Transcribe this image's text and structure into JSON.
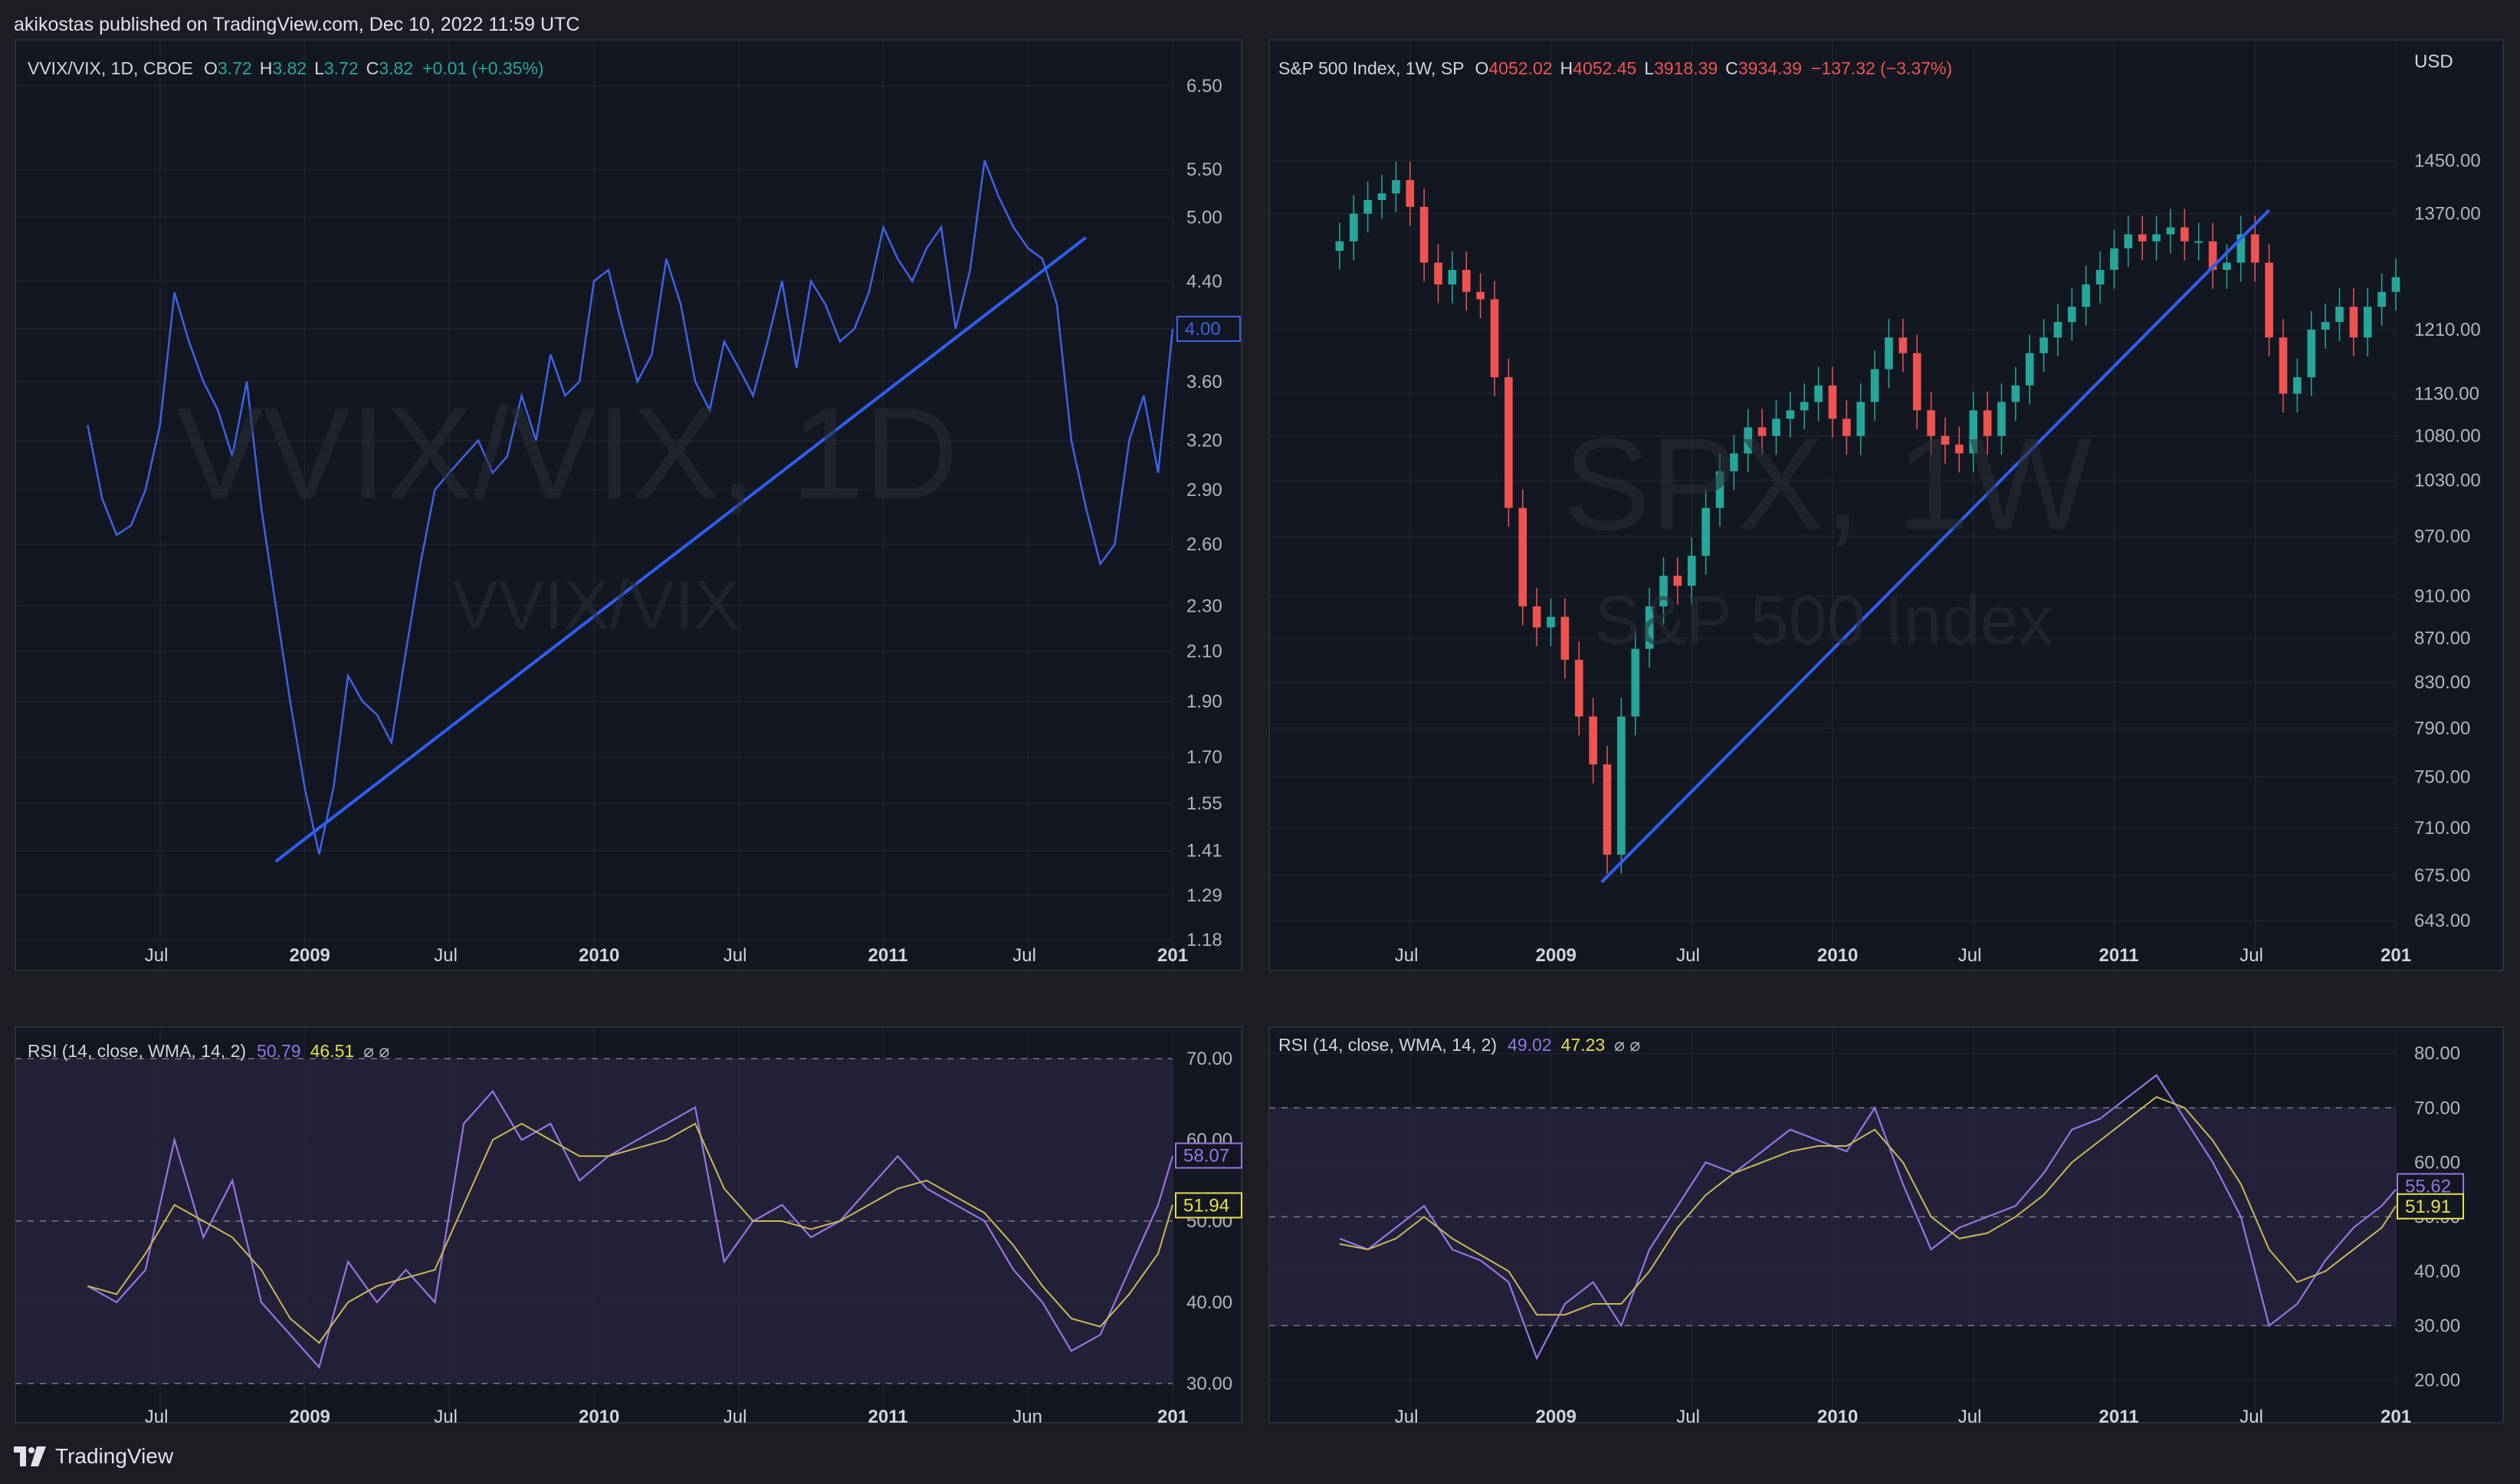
{
  "header": {
    "text": "akikostas published on TradingView.com, Dec 10, 2022 11:59 UTC"
  },
  "footer": {
    "brand": "TradingView"
  },
  "colors": {
    "background": "#131722",
    "grid": "#1f2330",
    "text": "#b2b5be",
    "line": "#3d63e6",
    "trend": "#2f5ff0",
    "up": "#26a69a",
    "down": "#ef5350",
    "rsi": "#9575e3",
    "rsi_ma": "#c9b85a",
    "rsi_band": "#2a2640"
  },
  "left": {
    "legend": {
      "symbol": "VVIX/VIX, 1D, CBOE",
      "o_label": "O",
      "o": "3.72",
      "h_label": "H",
      "h": "3.82",
      "l_label": "L",
      "l": "3.72",
      "c_label": "C",
      "c": "3.82",
      "change": "+0.01 (+0.35%)"
    },
    "watermark": "VVIX/VIX, 1D",
    "watermark_sub": "VVIX/VIX",
    "price_badge": "4.00",
    "rsi_legend": {
      "label": "RSI (14, close, WMA, 14, 2)",
      "v1": "50.79",
      "v2": "46.51",
      "flags": "⌀  ⌀"
    },
    "rsi_badges": [
      "58.07",
      "51.94"
    ]
  },
  "right": {
    "legend": {
      "symbol": "S&P 500 Index, 1W, SP",
      "o_label": "O",
      "o": "4052.02",
      "h_label": "H",
      "h": "4052.45",
      "l_label": "L",
      "l": "3918.39",
      "c_label": "C",
      "c": "3934.39",
      "change": "−137.32 (−3.37%)"
    },
    "watermark": "SPX, 1W",
    "watermark_sub": "S&P 500 Index",
    "currency": "USD",
    "rsi_legend": {
      "label": "RSI (14, close, WMA, 14, 2)",
      "v1": "49.02",
      "v2": "47.23",
      "flags": "⌀  ⌀"
    },
    "rsi_badges": [
      "55.62",
      "51.91"
    ]
  },
  "chart_data": [
    {
      "type": "line",
      "title": "VVIX/VIX, 1D, CBOE",
      "scale": "log",
      "yticks": [
        "6.50",
        "5.50",
        "5.00",
        "4.40",
        "4.00",
        "3.60",
        "3.20",
        "2.90",
        "2.60",
        "2.30",
        "2.10",
        "1.90",
        "1.70",
        "1.55",
        "1.41",
        "1.29",
        "1.18"
      ],
      "xticks": [
        "Jul",
        "2009",
        "Jul",
        "2010",
        "Jul",
        "2011",
        "Jul",
        "201"
      ],
      "ylim": [
        1.18,
        6.5
      ],
      "x": [
        2008.25,
        2008.3,
        2008.35,
        2008.4,
        2008.45,
        2008.5,
        2008.55,
        2008.6,
        2008.65,
        2008.7,
        2008.75,
        2008.8,
        2008.85,
        2008.9,
        2008.95,
        2009.0,
        2009.05,
        2009.1,
        2009.15,
        2009.2,
        2009.25,
        2009.3,
        2009.35,
        2009.4,
        2009.45,
        2009.5,
        2009.55,
        2009.6,
        2009.65,
        2009.7,
        2009.75,
        2009.8,
        2009.85,
        2009.9,
        2009.95,
        2010.0,
        2010.05,
        2010.1,
        2010.15,
        2010.2,
        2010.25,
        2010.3,
        2010.35,
        2010.4,
        2010.45,
        2010.5,
        2010.55,
        2010.6,
        2010.65,
        2010.7,
        2010.75,
        2010.8,
        2010.85,
        2010.9,
        2010.95,
        2011.0,
        2011.05,
        2011.1,
        2011.15,
        2011.2,
        2011.25,
        2011.3,
        2011.35,
        2011.4,
        2011.45,
        2011.5,
        2011.55,
        2011.6,
        2011.65,
        2011.7,
        2011.75,
        2011.8,
        2011.85,
        2011.9,
        2011.95,
        2012.0
      ],
      "values": [
        3.3,
        2.85,
        2.65,
        2.7,
        2.9,
        3.3,
        4.3,
        3.9,
        3.6,
        3.4,
        3.1,
        3.6,
        2.8,
        2.3,
        1.9,
        1.6,
        1.4,
        1.6,
        2.0,
        1.9,
        1.85,
        1.75,
        2.1,
        2.5,
        2.9,
        3.0,
        3.1,
        3.2,
        3.0,
        3.1,
        3.5,
        3.2,
        3.8,
        3.5,
        3.6,
        4.4,
        4.5,
        4.0,
        3.6,
        3.8,
        4.6,
        4.2,
        3.6,
        3.4,
        3.9,
        3.7,
        3.5,
        3.9,
        4.4,
        3.7,
        4.4,
        4.2,
        3.9,
        4.0,
        4.3,
        4.9,
        4.6,
        4.4,
        4.7,
        4.9,
        4.0,
        4.5,
        5.6,
        5.2,
        4.9,
        4.7,
        4.6,
        4.2,
        3.2,
        2.8,
        2.5,
        2.6,
        3.2,
        3.5,
        3.0,
        4.0
      ],
      "trendline": [
        [
          2008.9,
          1.38
        ],
        [
          2011.7,
          4.8
        ]
      ]
    },
    {
      "type": "line",
      "title": "RSI (14, close, WMA, 14, 2)",
      "yticks": [
        "70.00",
        "60.00",
        "50.00",
        "40.00",
        "30.00"
      ],
      "xticks": [
        "Jul",
        "2009",
        "Jul",
        "2010",
        "Jul",
        "2011",
        "Jun",
        "201"
      ],
      "ylim": [
        28,
        72
      ],
      "bands": [
        30,
        70
      ],
      "x": [
        2008.25,
        2008.35,
        2008.45,
        2008.55,
        2008.65,
        2008.75,
        2008.85,
        2008.95,
        2009.05,
        2009.15,
        2009.25,
        2009.35,
        2009.45,
        2009.55,
        2009.65,
        2009.75,
        2009.85,
        2009.95,
        2010.05,
        2010.15,
        2010.25,
        2010.35,
        2010.45,
        2010.55,
        2010.65,
        2010.75,
        2010.85,
        2010.95,
        2011.05,
        2011.15,
        2011.25,
        2011.35,
        2011.45,
        2011.55,
        2011.65,
        2011.75,
        2011.85,
        2011.95,
        2012.0
      ],
      "series": [
        {
          "name": "RSI",
          "values": [
            42,
            40,
            44,
            60,
            48,
            55,
            40,
            36,
            32,
            45,
            40,
            44,
            40,
            62,
            66,
            60,
            62,
            55,
            58,
            60,
            62,
            64,
            45,
            50,
            52,
            48,
            50,
            54,
            58,
            54,
            52,
            50,
            44,
            40,
            34,
            36,
            44,
            52,
            58
          ]
        },
        {
          "name": "RSI MA",
          "values": [
            42,
            41,
            46,
            52,
            50,
            48,
            44,
            38,
            35,
            40,
            42,
            43,
            44,
            52,
            60,
            62,
            60,
            58,
            58,
            59,
            60,
            62,
            54,
            50,
            50,
            49,
            50,
            52,
            54,
            55,
            53,
            51,
            47,
            42,
            38,
            37,
            41,
            46,
            52
          ]
        }
      ]
    },
    {
      "type": "bar",
      "title": "S&P 500 Index, 1W, SP",
      "scale": "log",
      "yticks": [
        "1450.00",
        "1370.00",
        "1210.00",
        "1130.00",
        "1080.00",
        "1030.00",
        "970.00",
        "910.00",
        "870.00",
        "830.00",
        "790.00",
        "750.00",
        "710.00",
        "675.00",
        "643.00"
      ],
      "xticks": [
        "Jul",
        "2009",
        "Jul",
        "2010",
        "Jul",
        "2011",
        "Jul",
        "201"
      ],
      "ylim": [
        630,
        1520
      ],
      "x": [
        2008.25,
        2008.3,
        2008.35,
        2008.4,
        2008.45,
        2008.5,
        2008.55,
        2008.6,
        2008.65,
        2008.7,
        2008.75,
        2008.8,
        2008.85,
        2008.9,
        2008.95,
        2009.0,
        2009.05,
        2009.1,
        2009.15,
        2009.2,
        2009.25,
        2009.3,
        2009.35,
        2009.4,
        2009.45,
        2009.5,
        2009.55,
        2009.6,
        2009.65,
        2009.7,
        2009.75,
        2009.8,
        2009.85,
        2009.9,
        2009.95,
        2010.0,
        2010.05,
        2010.1,
        2010.15,
        2010.2,
        2010.25,
        2010.3,
        2010.35,
        2010.4,
        2010.45,
        2010.5,
        2010.55,
        2010.6,
        2010.65,
        2010.7,
        2010.75,
        2010.8,
        2010.85,
        2010.9,
        2010.95,
        2011.0,
        2011.05,
        2011.1,
        2011.15,
        2011.2,
        2011.25,
        2011.3,
        2011.35,
        2011.4,
        2011.45,
        2011.5,
        2011.55,
        2011.6,
        2011.65,
        2011.7,
        2011.75,
        2011.8,
        2011.85,
        2011.9,
        2011.95,
        2012.0
      ],
      "values": [
        1330,
        1370,
        1390,
        1400,
        1420,
        1380,
        1300,
        1270,
        1290,
        1260,
        1250,
        1150,
        1000,
        900,
        880,
        890,
        850,
        800,
        760,
        690,
        800,
        860,
        900,
        930,
        920,
        950,
        1000,
        1040,
        1060,
        1090,
        1080,
        1100,
        1110,
        1120,
        1140,
        1100,
        1080,
        1120,
        1160,
        1200,
        1180,
        1110,
        1080,
        1070,
        1060,
        1110,
        1080,
        1120,
        1140,
        1180,
        1200,
        1220,
        1240,
        1270,
        1290,
        1320,
        1340,
        1330,
        1340,
        1350,
        1330,
        1330,
        1290,
        1300,
        1340,
        1300,
        1200,
        1130,
        1150,
        1210,
        1220,
        1240,
        1200,
        1240,
        1260,
        1280
      ],
      "trendline": [
        [
          2009.18,
          670
        ],
        [
          2011.55,
          1375
        ]
      ]
    },
    {
      "type": "line",
      "title": "RSI (14, close, WMA, 14, 2)",
      "yticks": [
        "80.00",
        "70.00",
        "60.00",
        "50.00",
        "40.00",
        "30.00",
        "20.00"
      ],
      "xticks": [
        "Jul",
        "2009",
        "Jul",
        "2010",
        "Jul",
        "2011",
        "Jul",
        "201"
      ],
      "ylim": [
        15,
        82
      ],
      "bands": [
        30,
        70
      ],
      "x": [
        2008.25,
        2008.35,
        2008.45,
        2008.55,
        2008.65,
        2008.75,
        2008.85,
        2008.95,
        2009.05,
        2009.15,
        2009.25,
        2009.35,
        2009.45,
        2009.55,
        2009.65,
        2009.75,
        2009.85,
        2009.95,
        2010.05,
        2010.15,
        2010.25,
        2010.35,
        2010.45,
        2010.55,
        2010.65,
        2010.75,
        2010.85,
        2010.95,
        2011.05,
        2011.15,
        2011.25,
        2011.35,
        2011.45,
        2011.55,
        2011.65,
        2011.75,
        2011.85,
        2011.95,
        2012.0
      ],
      "series": [
        {
          "name": "RSI",
          "values": [
            46,
            44,
            48,
            52,
            44,
            42,
            38,
            24,
            34,
            38,
            30,
            44,
            52,
            60,
            58,
            62,
            66,
            64,
            62,
            70,
            56,
            44,
            48,
            50,
            52,
            58,
            66,
            68,
            72,
            76,
            68,
            60,
            50,
            30,
            34,
            42,
            48,
            52,
            55
          ]
        },
        {
          "name": "RSI MA",
          "values": [
            45,
            44,
            46,
            50,
            46,
            43,
            40,
            32,
            32,
            34,
            34,
            40,
            48,
            54,
            58,
            60,
            62,
            63,
            63,
            66,
            60,
            50,
            46,
            47,
            50,
            54,
            60,
            64,
            68,
            72,
            70,
            64,
            56,
            44,
            38,
            40,
            44,
            48,
            52
          ]
        }
      ]
    }
  ]
}
